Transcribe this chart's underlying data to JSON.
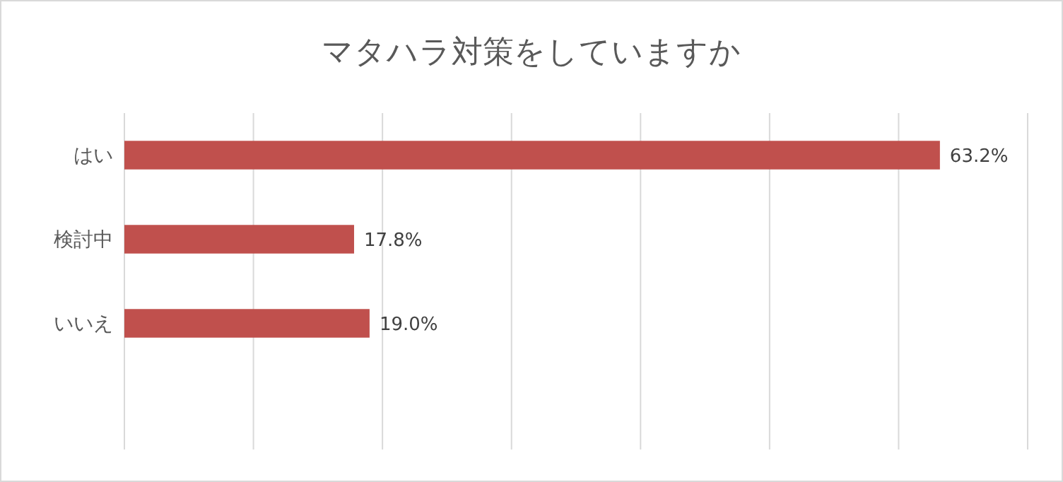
{
  "chart_data": {
    "type": "bar",
    "orientation": "horizontal",
    "title": "マタハラ対策をしていますか",
    "categories": [
      "はい",
      "検討中",
      "いいえ",
      null
    ],
    "values": [
      63.2,
      17.8,
      19.0,
      null
    ],
    "value_labels": [
      "63.2%",
      "17.8%",
      "19.0%",
      null
    ],
    "color": "#c0504d",
    "xlim": [
      0,
      70
    ],
    "xticks": [
      {
        "value": 0,
        "label": null
      },
      {
        "value": 10,
        "label": null
      },
      {
        "value": 20,
        "label": null
      },
      {
        "value": 30,
        "label": null
      },
      {
        "value": 40,
        "label": null
      },
      {
        "value": 50,
        "label": null
      },
      {
        "value": 60,
        "label": null
      },
      {
        "value": 70,
        "label": null
      }
    ],
    "grid": "x",
    "tick_labels": "y"
  }
}
